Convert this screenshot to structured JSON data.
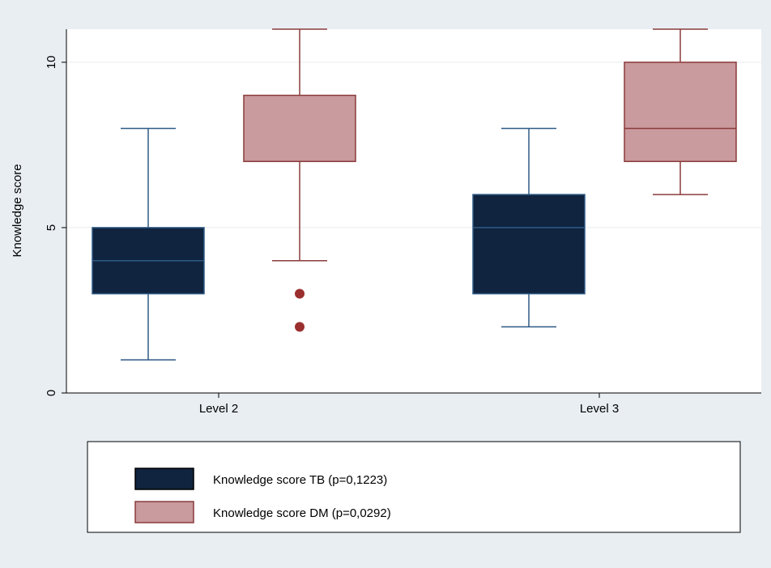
{
  "chart_data": {
    "type": "boxplot",
    "title": "",
    "xlabel": "",
    "ylabel": "Knowledge score",
    "ylim": [
      0,
      11
    ],
    "yticks": [
      0,
      5,
      10
    ],
    "ytick_labels": [
      "0",
      "5",
      "10"
    ],
    "grid": true,
    "legend_position": "bottom",
    "categories": [
      "Level 2",
      "Level 3"
    ],
    "series": [
      {
        "name": "Knowledge score TB (p=0,1223)",
        "color": "#10243f",
        "boxes": [
          {
            "category": "Level 2",
            "whisker_low": 1,
            "q1": 3,
            "median": 4,
            "q3": 5,
            "whisker_high": 8,
            "outliers": []
          },
          {
            "category": "Level 3",
            "whisker_low": 2,
            "q1": 3,
            "median": 5,
            "q3": 6,
            "whisker_high": 8,
            "outliers": []
          }
        ]
      },
      {
        "name": "Knowledge score DM (p=0,0292)",
        "color": "#c99a9e",
        "edge_color": "#8b3b3b",
        "boxes": [
          {
            "category": "Level 2",
            "whisker_low": 4,
            "q1": 7,
            "median": 7,
            "q3": 9,
            "whisker_high": 11,
            "outliers": [
              3,
              2
            ]
          },
          {
            "category": "Level 3",
            "whisker_low": 6,
            "q1": 7,
            "median": 8,
            "q3": 10,
            "whisker_high": 11,
            "outliers": []
          }
        ]
      }
    ]
  }
}
